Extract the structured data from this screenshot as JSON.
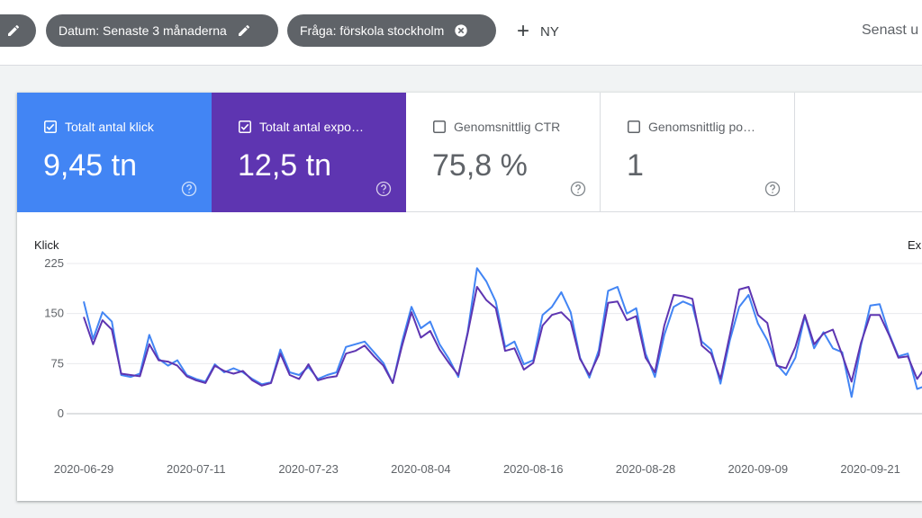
{
  "filters": {
    "chip_prev_label": "",
    "date_chip": "Datum: Senaste 3 månaderna",
    "query_chip": "Fråga: förskola stockholm",
    "add_new": "NY",
    "last_updated": "Senast u"
  },
  "metrics": [
    {
      "label": "Totalt antal klick",
      "value": "9,45 tn",
      "checked": true,
      "color": "#4285f4"
    },
    {
      "label": "Totalt antal expo…",
      "value": "12,5 tn",
      "checked": true,
      "color": "#5e35b1"
    },
    {
      "label": "Genomsnittlig CTR",
      "value": "75,8 %",
      "checked": false
    },
    {
      "label": "Genomsnittlig po…",
      "value": "1",
      "checked": false
    }
  ],
  "chart_data": {
    "type": "line",
    "ylabel_left": "Klick",
    "ylabel_right": "Ex",
    "yticks": [
      0,
      75,
      150,
      225
    ],
    "ylim": [
      0,
      225
    ],
    "grid": true,
    "xticks": [
      "2020-06-29",
      "2020-07-11",
      "2020-07-23",
      "2020-08-04",
      "2020-08-16",
      "2020-08-28",
      "2020-09-09",
      "2020-09-21"
    ],
    "x_start": "2020-06-29",
    "series": [
      {
        "color": "#4285f4",
        "values": [
          168,
          112,
          152,
          138,
          58,
          55,
          60,
          118,
          82,
          72,
          80,
          58,
          52,
          48,
          74,
          62,
          68,
          62,
          52,
          44,
          47,
          96,
          62,
          58,
          70,
          52,
          58,
          62,
          100,
          104,
          108,
          92,
          76,
          46,
          108,
          160,
          128,
          138,
          104,
          82,
          55,
          122,
          218,
          198,
          168,
          100,
          108,
          74,
          80,
          148,
          160,
          182,
          152,
          84,
          54,
          95,
          184,
          190,
          150,
          158,
          90,
          55,
          118,
          160,
          168,
          162,
          108,
          96,
          45,
          110,
          160,
          178,
          135,
          110,
          74,
          58,
          84,
          146,
          98,
          122,
          98,
          92,
          25,
          102,
          162,
          164,
          120,
          86,
          90,
          37,
          42
        ]
      },
      {
        "color": "#5e35b1",
        "values": [
          145,
          104,
          140,
          126,
          60,
          58,
          56,
          104,
          80,
          78,
          72,
          56,
          50,
          46,
          72,
          64,
          60,
          64,
          50,
          42,
          46,
          90,
          58,
          52,
          74,
          50,
          54,
          56,
          90,
          94,
          102,
          86,
          72,
          46,
          102,
          152,
          114,
          124,
          96,
          76,
          58,
          120,
          190,
          170,
          158,
          94,
          98,
          66,
          76,
          132,
          148,
          152,
          138,
          82,
          58,
          88,
          166,
          168,
          140,
          146,
          84,
          62,
          132,
          178,
          176,
          172,
          102,
          90,
          52,
          118,
          186,
          190,
          148,
          136,
          72,
          68,
          100,
          148,
          104,
          120,
          126,
          88,
          48,
          106,
          148,
          148,
          118,
          84,
          86,
          52,
          72
        ]
      }
    ]
  }
}
